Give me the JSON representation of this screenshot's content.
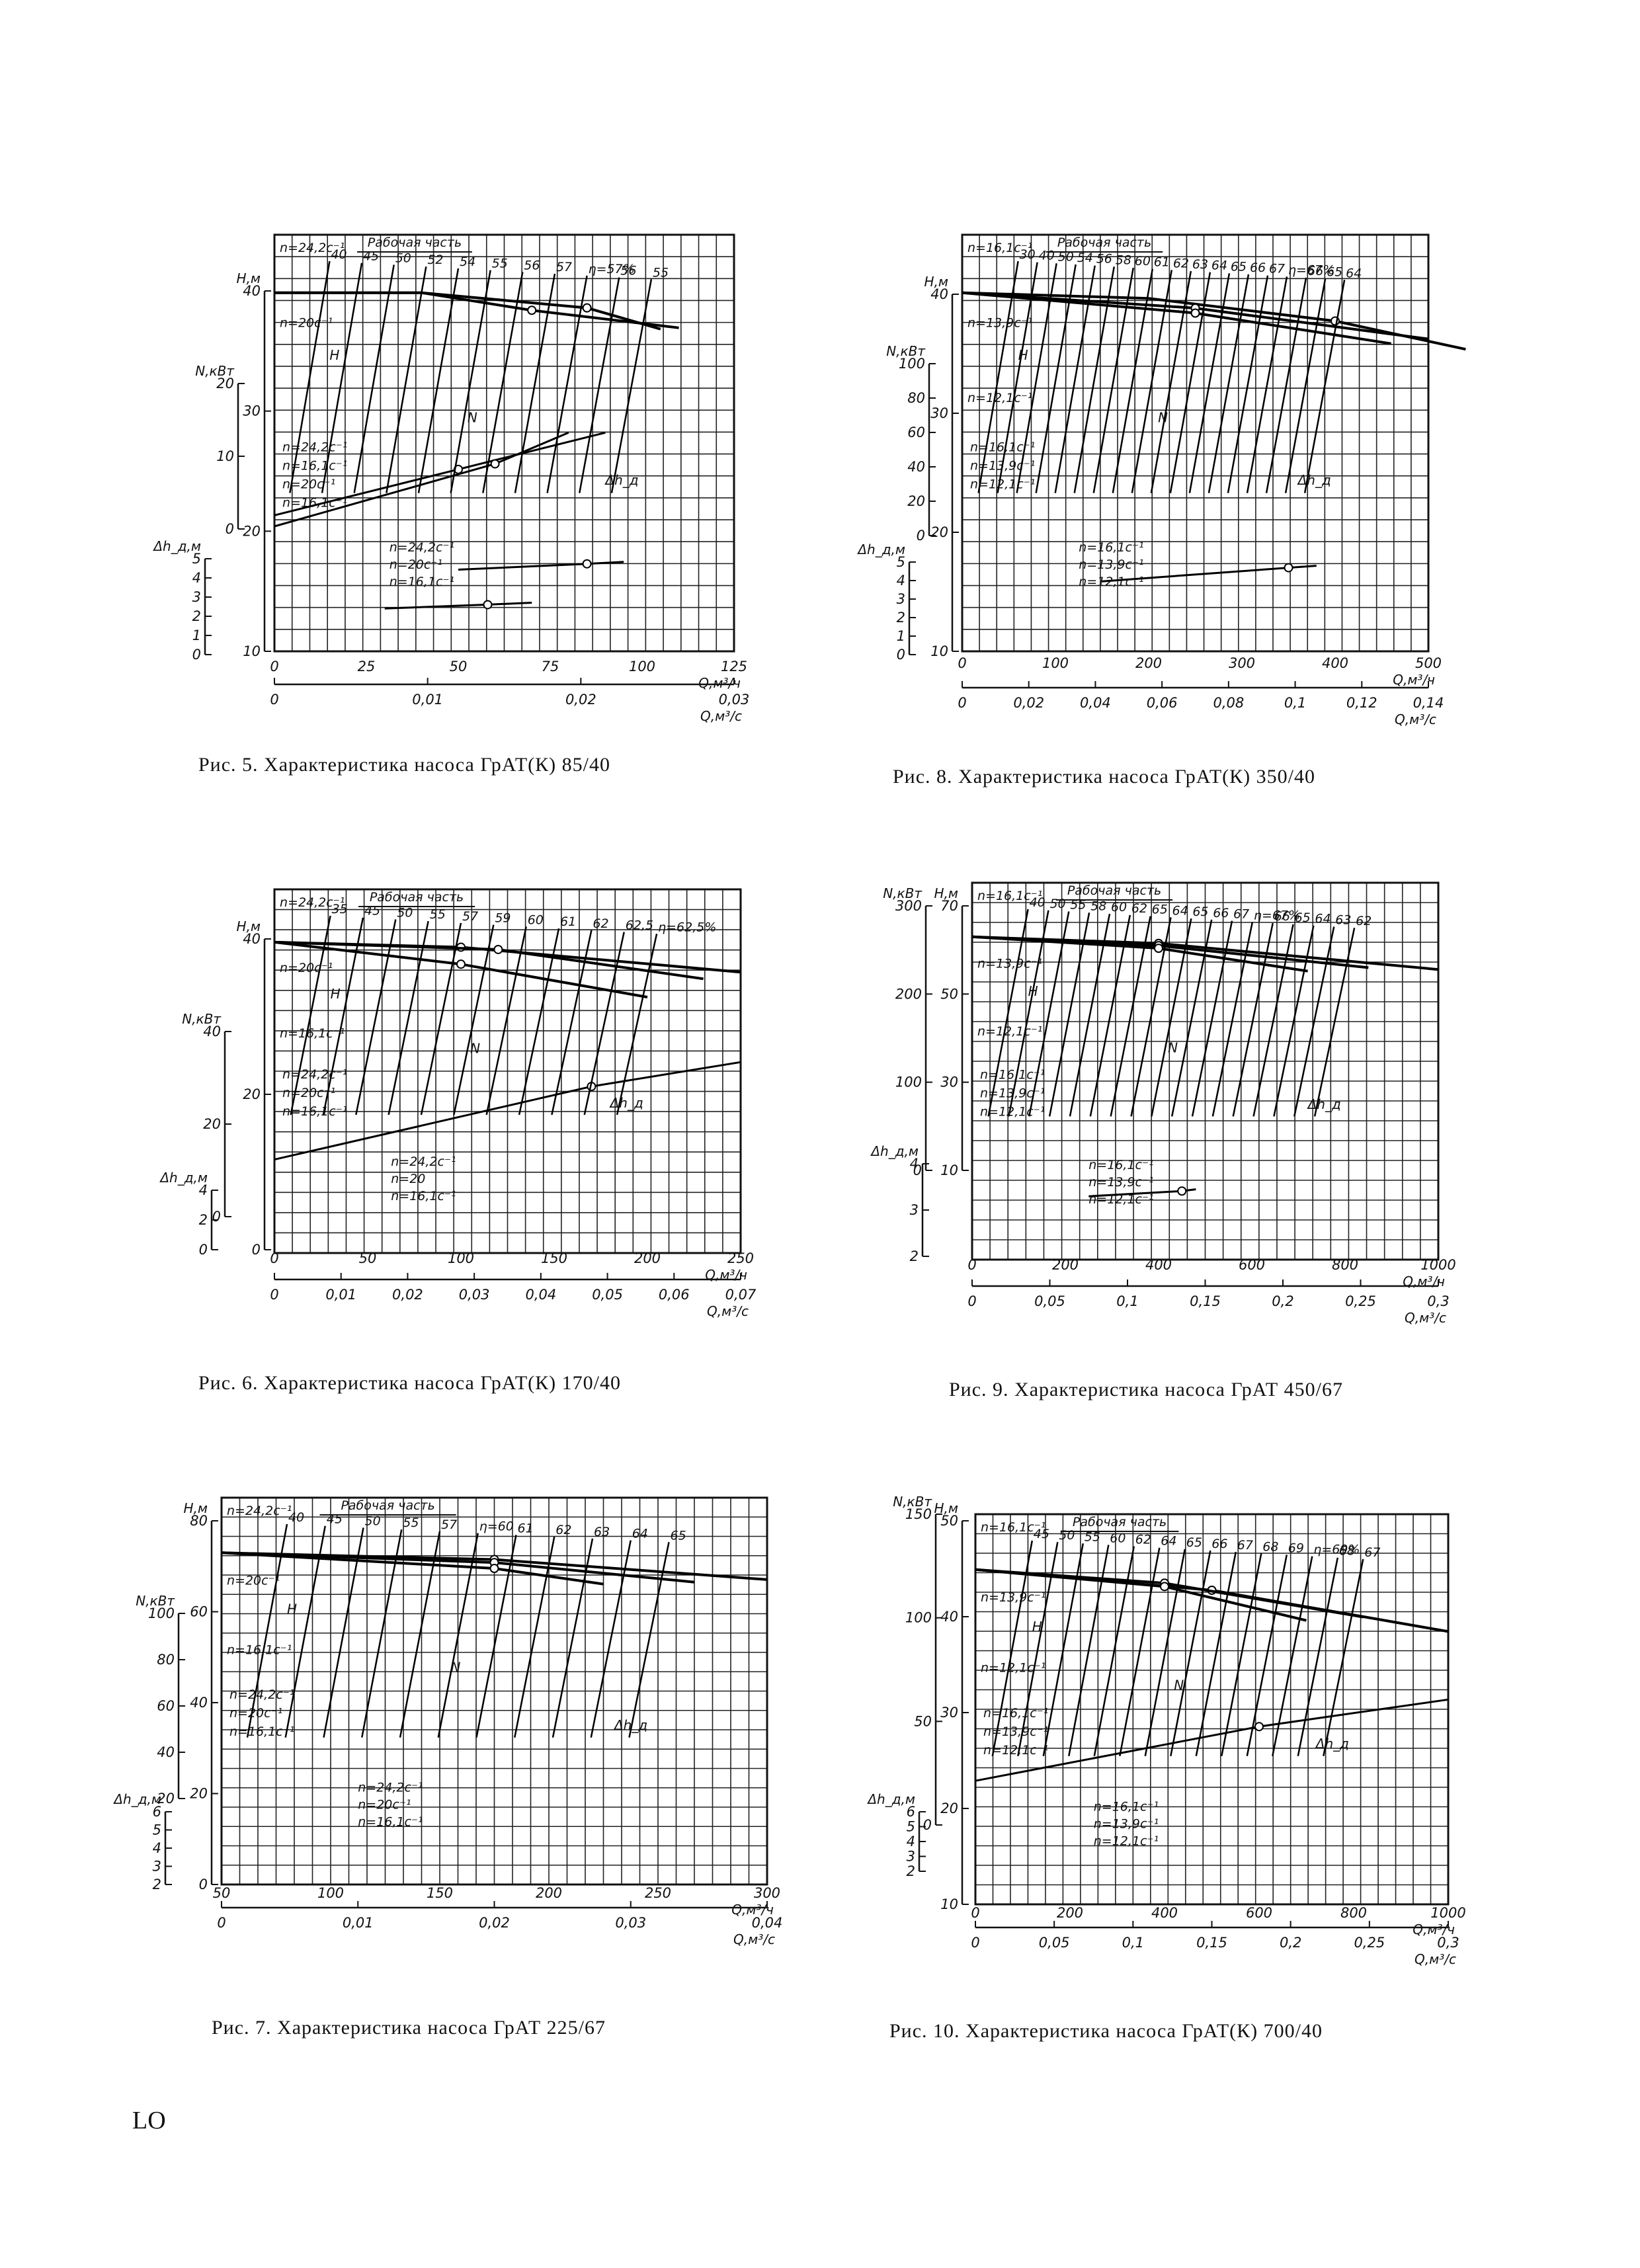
{
  "page_number": "LO",
  "working_zone_label": "Рабочая часть",
  "charts": [
    {
      "id": "fig5",
      "caption": "Рис.  5.  Характеристика  насоса  ГрАТ(К)  85/40",
      "title": "Характеристика насоса ГрАТ(К) 85/40",
      "figure_number": "Рис. 5",
      "x_ticks": [
        "0",
        "25",
        "50",
        "75",
        "100",
        "125"
      ],
      "x_label": "Q,м³/ч",
      "x2_ticks": [
        "0",
        "0,01",
        "0,02",
        "0,03"
      ],
      "x2_label": "Q,м³/с",
      "left_axes": {
        "H": "Н,м",
        "N": "N,кВт",
        "dh": "Δh_д,м"
      },
      "h_ticks": [
        "40",
        "30",
        "20",
        "10"
      ],
      "n_ticks": [
        "20",
        "10",
        "0"
      ],
      "dh_ticks": [
        "5",
        "4",
        "3",
        "2",
        "1",
        "0"
      ],
      "speed_labels_H": [
        "n=24,2с⁻¹",
        "n=20с⁻¹"
      ],
      "speed_labels_N": [
        "n=24,2с⁻¹",
        "n=16,1с⁻¹",
        "n=20с⁻¹",
        "n=16,1с⁻¹"
      ],
      "speed_labels_dh": [
        "n=24,2с⁻¹",
        "n=20с⁻¹",
        "n=16,1с⁻¹"
      ],
      "efficiency_labels": [
        "40",
        "45",
        "50",
        "52",
        "54",
        "55",
        "56",
        "57",
        "η=57%",
        "56",
        "55"
      ],
      "curve_labels": [
        "H",
        "N",
        "Δh_д"
      ],
      "chart_data": {
        "type": "line",
        "xlim": [
          0,
          125
        ],
        "x_unit": "м³/ч",
        "series": [
          {
            "name": "H, n=24,2с⁻¹",
            "x": [
              0,
              40,
              85,
              105
            ],
            "y": [
              42,
              42,
              39.5,
              36
            ]
          },
          {
            "name": "H, n=20с⁻¹",
            "x": [
              0,
              40,
              70,
              110
            ],
            "y": [
              29,
              29,
              27,
              25
            ]
          },
          {
            "name": "N, n=24,2с⁻¹",
            "x": [
              0,
              50,
              90
            ],
            "y": [
              8,
              13,
              17
            ]
          },
          {
            "name": "N, n=16,1с⁻¹",
            "x": [
              0,
              60,
              80
            ],
            "y": [
              2,
              4,
              5
            ]
          },
          {
            "name": "Δh, n=24,2с⁻¹",
            "x": [
              50,
              85,
              95
            ],
            "y": [
              4.2,
              4.5,
              4.6
            ]
          },
          {
            "name": "Δh, n=16,1с⁻¹",
            "x": [
              30,
              58,
              70
            ],
            "y": [
              2.2,
              2.4,
              2.5
            ]
          }
        ]
      }
    },
    {
      "id": "fig8",
      "caption": "Рис.  8.  Характеристика  насоса  ГрАТ(К)  350/40",
      "title": "Характеристика насоса ГрАТ(К) 350/40",
      "figure_number": "Рис. 8",
      "x_ticks": [
        "0",
        "100",
        "200",
        "300",
        "400",
        "500"
      ],
      "x_label": "Q,м³/ч",
      "x2_ticks": [
        "0",
        "0,02",
        "0,04",
        "0,06",
        "0,08",
        "0,1",
        "0,12",
        "0,14"
      ],
      "x2_label": "Q,м³/с",
      "left_axes": {
        "H": "Н,м",
        "N": "N,кВт",
        "dh": "Δh_д,м"
      },
      "h_ticks": [
        "40",
        "30",
        "20",
        "10"
      ],
      "n_ticks": [
        "100",
        "80",
        "60",
        "40",
        "20",
        "0"
      ],
      "dh_ticks": [
        "5",
        "4",
        "3",
        "2",
        "1",
        "0"
      ],
      "speed_labels_H": [
        "n=16,1с⁻¹",
        "n=13,9с⁻¹",
        "n=12,1с⁻¹"
      ],
      "speed_labels_N": [
        "n=16,1с⁻¹",
        "n=13,9с⁻¹",
        "n=12,1с⁻¹"
      ],
      "speed_labels_dh": [
        "n=16,1с⁻¹",
        "n=13,9с⁻¹",
        "n=12,1с⁻¹"
      ],
      "efficiency_labels": [
        "30",
        "40",
        "50",
        "54",
        "56",
        "58",
        "60",
        "61",
        "62",
        "63",
        "64",
        "65",
        "66",
        "67",
        "η=67%",
        "66",
        "65",
        "64"
      ],
      "curve_labels": [
        "H",
        "N",
        "Δh_д"
      ],
      "chart_data": {
        "type": "line",
        "xlim": [
          0,
          500
        ],
        "x_unit": "м³/ч",
        "series": [
          {
            "name": "H, n=16,1с⁻¹",
            "x": [
              0,
              200,
              400,
              540
            ],
            "y": [
              45,
              44,
              40,
              35
            ]
          },
          {
            "name": "H, n=13,9с⁻¹",
            "x": [
              0,
              250,
              500
            ],
            "y": [
              33,
              31,
              27
            ]
          },
          {
            "name": "H, n=12,1с⁻¹",
            "x": [
              0,
              250,
              460
            ],
            "y": [
              25,
              23,
              20
            ]
          },
          {
            "name": "Δh, n=16,1с⁻¹",
            "x": [
              150,
              350,
              380
            ],
            "y": [
              3.6,
              4.3,
              4.4
            ]
          }
        ]
      }
    },
    {
      "id": "fig6",
      "caption": "Рис.  6.  Характеристика  насоса  ГрАТ(К)  170/40",
      "title": "Характеристика насоса ГрАТ(К) 170/40",
      "figure_number": "Рис. 6",
      "x_ticks": [
        "0",
        "50",
        "100",
        "150",
        "200",
        "250"
      ],
      "x_label": "Q,м³/ч",
      "x2_ticks": [
        "0",
        "0,01",
        "0,02",
        "0,03",
        "0,04",
        "0,05",
        "0,06",
        "0,07"
      ],
      "x2_label": "Q,м³/с",
      "left_axes": {
        "H": "Н,м",
        "N": "N,кВт",
        "dh": "Δh_д,м"
      },
      "h_ticks": [
        "40",
        "20",
        "0"
      ],
      "n_ticks": [
        "40",
        "20",
        "0"
      ],
      "dh_ticks": [
        "4",
        "2",
        "0"
      ],
      "speed_labels_H": [
        "n=24,2с⁻¹",
        "n=20с⁻¹",
        "n=16,1с⁻¹"
      ],
      "speed_labels_N": [
        "n=24,2с⁻¹",
        "n=20с⁻¹",
        "n=16,1с⁻¹"
      ],
      "speed_labels_dh": [
        "n=24,2с⁻¹",
        "n=20",
        "n=16,1с⁻¹"
      ],
      "efficiency_labels": [
        "35",
        "45",
        "50",
        "55",
        "57",
        "59",
        "60",
        "61",
        "62",
        "62,5",
        "η=62,5%"
      ],
      "curve_labels": [
        "H",
        "N",
        "Δh_д"
      ],
      "chart_data": {
        "type": "line",
        "xlim": [
          0,
          250
        ],
        "x_unit": "м³/ч",
        "series": [
          {
            "name": "H, n=24,2с⁻¹",
            "x": [
              0,
              100,
              250
            ],
            "y": [
              44,
              43,
              38
            ]
          },
          {
            "name": "H, n=20с⁻¹",
            "x": [
              0,
              120,
              230
            ],
            "y": [
              30,
              29,
              25
            ]
          },
          {
            "name": "H, n=16,1с⁻¹",
            "x": [
              0,
              100,
              200
            ],
            "y": [
              20,
              18,
              15
            ]
          },
          {
            "name": "N, n=24,2с⁻¹",
            "x": [
              0,
              170,
              250
            ],
            "y": [
              8,
              23,
              28
            ]
          }
        ]
      }
    },
    {
      "id": "fig9",
      "caption": "Рис. 9. Характеристика насоса ГрАТ 450/67",
      "title": "Характеристика насоса ГрАТ 450/67",
      "figure_number": "Рис. 9",
      "x_ticks": [
        "0",
        "200",
        "400",
        "600",
        "800",
        "1000"
      ],
      "x_label": "Q,м³/ч",
      "x2_ticks": [
        "0",
        "0,05",
        "0,1",
        "0,15",
        "0,2",
        "0,25",
        "0,3"
      ],
      "x2_label": "Q,м³/с",
      "left_axes": {
        "H": "Н,м",
        "N": "N,кВт",
        "dh": "Δh_д,м"
      },
      "h_ticks": [
        "70",
        "50",
        "30",
        "10"
      ],
      "n_ticks": [
        "300",
        "200",
        "100",
        "0"
      ],
      "dh_ticks": [
        "4",
        "3",
        "2"
      ],
      "speed_labels_H": [
        "n=16,1с⁻¹",
        "n=13,9с⁻¹",
        "n=12,1с⁻¹"
      ],
      "speed_labels_N": [
        "n=16,1с⁻¹",
        "n=13,9с⁻¹",
        "n=12,1с⁻¹"
      ],
      "speed_labels_dh": [
        "n=16,1с⁻¹",
        "n=13,9с⁻¹",
        "n=12,1с⁻¹"
      ],
      "efficiency_labels": [
        "40",
        "50",
        "55",
        "58",
        "60",
        "62",
        "65",
        "64",
        "65",
        "66",
        "67",
        "η=67%",
        "66",
        "65",
        "64",
        "63",
        "62"
      ],
      "curve_labels": [
        "H",
        "N",
        "Δh_д"
      ],
      "chart_data": {
        "type": "line",
        "xlim": [
          0,
          1000
        ],
        "x_unit": "м³/ч",
        "series": [
          {
            "name": "H, n=16,1с⁻¹",
            "x": [
              0,
              400,
              1000
            ],
            "y": [
              70,
              68,
              60
            ]
          },
          {
            "name": "H, n=13,9с⁻¹",
            "x": [
              0,
              400,
              850
            ],
            "y": [
              52,
              50,
              45
            ]
          },
          {
            "name": "H, n=12,1с⁻¹",
            "x": [
              0,
              400,
              720
            ],
            "y": [
              40,
              38,
              34
            ]
          },
          {
            "name": "Δh, n=16,1с⁻¹",
            "x": [
              250,
              450,
              480
            ],
            "y": [
              3.6,
              3.9,
              4.0
            ]
          }
        ]
      }
    },
    {
      "id": "fig7",
      "caption": "Рис. 7. Характеристика насоса ГрАТ 225/67",
      "title": "Характеристика насоса ГрАТ 225/67",
      "figure_number": "Рис. 7",
      "x_ticks": [
        "50",
        "100",
        "150",
        "200",
        "250",
        "300"
      ],
      "x_label": "Q,м³/ч",
      "x2_ticks": [
        "0",
        "0,01",
        "0,02",
        "0,03",
        "0,04"
      ],
      "x2_label": "Q,м³/с",
      "left_axes": {
        "H": "Н,м",
        "N": "N,кВт",
        "dh": "Δh_д,м"
      },
      "h_ticks": [
        "80",
        "60",
        "40",
        "20",
        "0"
      ],
      "n_ticks": [
        "100",
        "80",
        "60",
        "40",
        "20"
      ],
      "dh_ticks": [
        "6",
        "5",
        "4",
        "3",
        "2"
      ],
      "speed_labels_H": [
        "n=24,2с⁻¹",
        "n=20с⁻¹",
        "n=16,1с⁻¹"
      ],
      "speed_labels_N": [
        "n=24,2с⁻¹",
        "n=20с⁻¹",
        "n=16,1с⁻¹"
      ],
      "speed_labels_dh": [
        "n=24,2с⁻¹",
        "n=20с⁻¹",
        "n=16,1с⁻¹"
      ],
      "efficiency_labels": [
        "40",
        "45",
        "50",
        "55",
        "57",
        "η=60",
        "61",
        "62",
        "63",
        "64",
        "65"
      ],
      "curve_labels": [
        "H",
        "N",
        "Δh_д"
      ],
      "chart_data": {
        "type": "line",
        "xlim": [
          0,
          300
        ],
        "x_unit": "м³/ч",
        "series": [
          {
            "name": "H, n=24,2с⁻¹",
            "x": [
              0,
              150,
              300
            ],
            "y": [
              70,
              68,
              62
            ]
          },
          {
            "name": "H, n=20с⁻¹",
            "x": [
              0,
              150,
              260
            ],
            "y": [
              48,
              46,
              42
            ]
          },
          {
            "name": "H, n=16,1с⁻¹",
            "x": [
              0,
              150,
              210
            ],
            "y": [
              30,
              28,
              26
            ]
          }
        ]
      }
    },
    {
      "id": "fig10",
      "caption": "Рис.  10.  Характеристика  насоса  ГрАТ(К)  700/40",
      "title": "Характеристика насоса ГрАТ(К) 700/40",
      "figure_number": "Рис. 10",
      "x_ticks": [
        "0",
        "200",
        "400",
        "600",
        "800",
        "1000"
      ],
      "x_label": "Q,м³/ч",
      "x2_ticks": [
        "0",
        "0,05",
        "0,1",
        "0,15",
        "0,2",
        "0,25",
        "0,3"
      ],
      "x2_label": "Q,м³/с",
      "left_axes": {
        "H": "Н,м",
        "N": "N,кВт",
        "dh": "Δh_д,м"
      },
      "h_ticks": [
        "50",
        "40",
        "30",
        "20",
        "10"
      ],
      "n_ticks": [
        "150",
        "100",
        "50",
        "0"
      ],
      "dh_ticks": [
        "6",
        "5",
        "4",
        "3",
        "2"
      ],
      "speed_labels_H": [
        "n=16,1с⁻¹",
        "n=13,9с⁻¹",
        "n=12,1с⁻¹"
      ],
      "speed_labels_N": [
        "n=16,1с⁻¹",
        "n=13,9с⁻¹",
        "n=12,1с⁻¹"
      ],
      "speed_labels_dh": [
        "n=16,1с⁻¹",
        "n=13,9с⁻¹",
        "n=12,1с⁻¹"
      ],
      "efficiency_labels": [
        "45",
        "50",
        "55",
        "60",
        "62",
        "64",
        "65",
        "66",
        "67",
        "68",
        "69",
        "η=69%",
        "68",
        "67"
      ],
      "curve_labels": [
        "H",
        "N",
        "Δh_д"
      ],
      "chart_data": {
        "type": "line",
        "xlim": [
          0,
          1000
        ],
        "x_unit": "м³/ч",
        "series": [
          {
            "name": "H, n=16,1с⁻¹",
            "x": [
              0,
              500,
              1000
            ],
            "y": [
              46,
              42,
              34
            ]
          },
          {
            "name": "H, n=13,9с⁻¹",
            "x": [
              0,
              400,
              820
            ],
            "y": [
              35,
              33,
              28
            ]
          },
          {
            "name": "H, n=12,1с⁻¹",
            "x": [
              0,
              400,
              700
            ],
            "y": [
              28,
              26,
              22
            ]
          },
          {
            "name": "N, n=16,1с⁻¹",
            "x": [
              0,
              600,
              1000
            ],
            "y": [
              60,
              110,
              135
            ]
          }
        ]
      }
    }
  ]
}
